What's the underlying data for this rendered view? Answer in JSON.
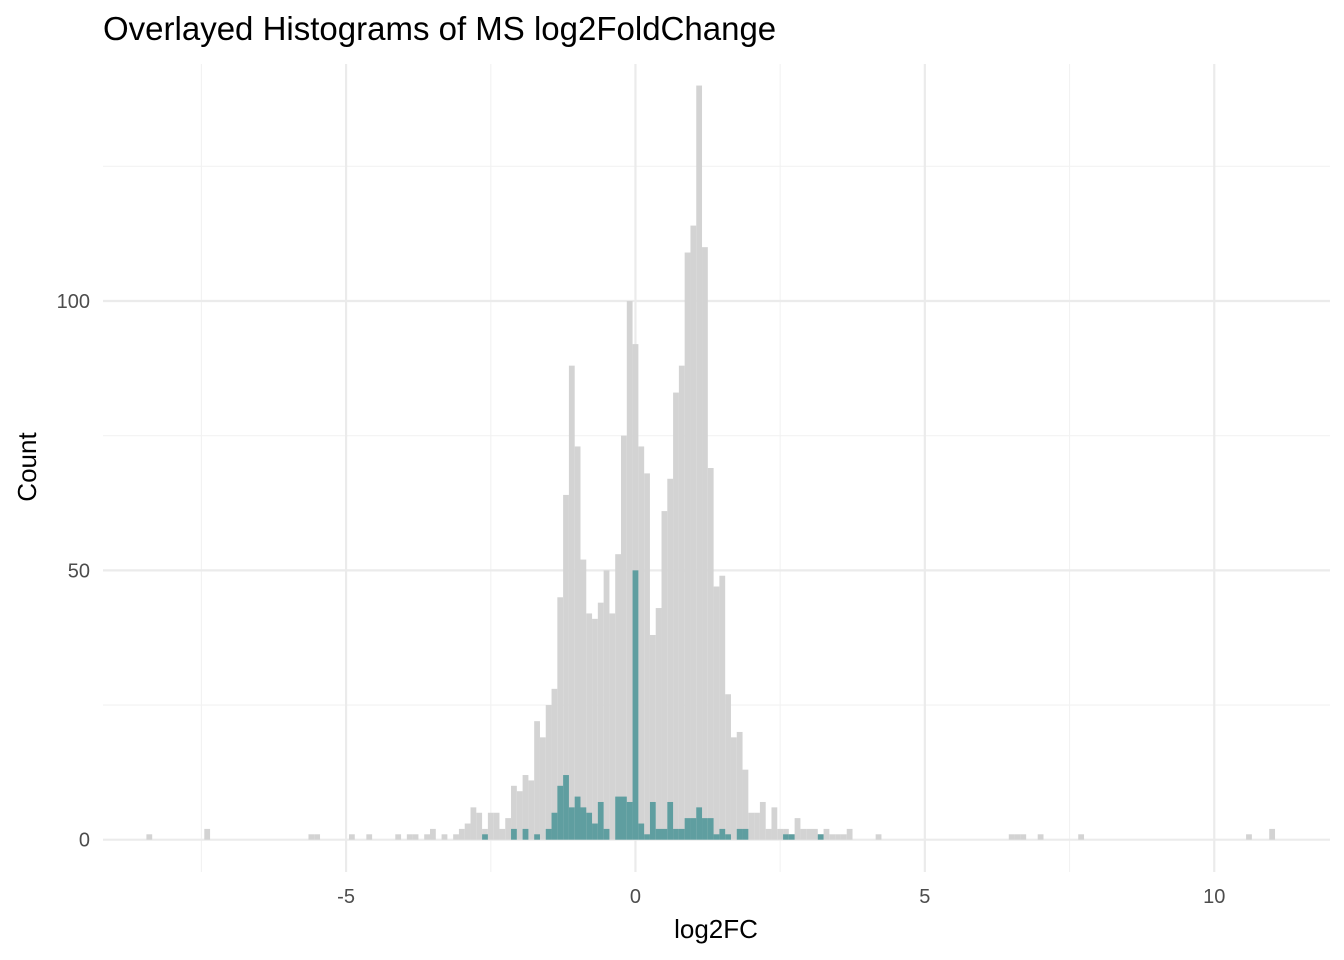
{
  "chart_data": {
    "type": "histogram",
    "title": "Overlayed Histograms of MS log2FoldChange",
    "xlabel": "log2FC",
    "ylabel": "Count",
    "xlim": [
      -9.2,
      12.0
    ],
    "ylim": [
      -6,
      144
    ],
    "x_ticks": [
      -5,
      0,
      5,
      10
    ],
    "y_ticks": [
      0,
      50,
      100
    ],
    "x_minor": [
      -7.5,
      -2.5,
      2.5,
      7.5
    ],
    "y_minor": [
      25,
      75,
      125
    ],
    "grid": true,
    "bin_width": 0.1,
    "series": [
      {
        "fill": "#d3d3d3",
        "bins": [
          [
            -8.4,
            1
          ],
          [
            -7.4,
            2
          ],
          [
            -5.6,
            1
          ],
          [
            -5.5,
            1
          ],
          [
            -4.9,
            1
          ],
          [
            -4.6,
            1
          ],
          [
            -4.1,
            1
          ],
          [
            -3.9,
            1
          ],
          [
            -3.8,
            1
          ],
          [
            -3.6,
            1
          ],
          [
            -3.5,
            2
          ],
          [
            -3.3,
            1
          ],
          [
            -3.1,
            1
          ],
          [
            -3.0,
            2
          ],
          [
            -2.9,
            3
          ],
          [
            -2.8,
            6
          ],
          [
            -2.7,
            5
          ],
          [
            -2.6,
            2
          ],
          [
            -2.5,
            5
          ],
          [
            -2.4,
            5
          ],
          [
            -2.3,
            2
          ],
          [
            -2.2,
            4
          ],
          [
            -2.1,
            10
          ],
          [
            -2.0,
            9
          ],
          [
            -1.9,
            12
          ],
          [
            -1.8,
            11
          ],
          [
            -1.7,
            22
          ],
          [
            -1.6,
            19
          ],
          [
            -1.5,
            25
          ],
          [
            -1.4,
            28
          ],
          [
            -1.3,
            45
          ],
          [
            -1.2,
            64
          ],
          [
            -1.1,
            88
          ],
          [
            -1.0,
            73
          ],
          [
            -0.9,
            52
          ],
          [
            -0.8,
            42
          ],
          [
            -0.7,
            41
          ],
          [
            -0.6,
            44
          ],
          [
            -0.5,
            50
          ],
          [
            -0.4,
            42
          ],
          [
            -0.3,
            53
          ],
          [
            -0.2,
            75
          ],
          [
            -0.1,
            100
          ],
          [
            0.0,
            92
          ],
          [
            0.1,
            73
          ],
          [
            0.2,
            68
          ],
          [
            0.3,
            38
          ],
          [
            0.4,
            43
          ],
          [
            0.5,
            61
          ],
          [
            0.6,
            67
          ],
          [
            0.7,
            83
          ],
          [
            0.8,
            88
          ],
          [
            0.9,
            109
          ],
          [
            1.0,
            114
          ],
          [
            1.1,
            140
          ],
          [
            1.2,
            110
          ],
          [
            1.3,
            69
          ],
          [
            1.4,
            47
          ],
          [
            1.5,
            49
          ],
          [
            1.6,
            27
          ],
          [
            1.7,
            19
          ],
          [
            1.8,
            20
          ],
          [
            1.9,
            13
          ],
          [
            2.0,
            5
          ],
          [
            2.1,
            5
          ],
          [
            2.2,
            7
          ],
          [
            2.3,
            2
          ],
          [
            2.4,
            6
          ],
          [
            2.5,
            2
          ],
          [
            2.6,
            2
          ],
          [
            2.7,
            1
          ],
          [
            2.8,
            4
          ],
          [
            2.9,
            2
          ],
          [
            3.0,
            2
          ],
          [
            3.1,
            2
          ],
          [
            3.2,
            1
          ],
          [
            3.3,
            2
          ],
          [
            3.4,
            1
          ],
          [
            3.5,
            1
          ],
          [
            3.6,
            1
          ],
          [
            3.7,
            2
          ],
          [
            4.2,
            1
          ],
          [
            6.5,
            1
          ],
          [
            6.6,
            1
          ],
          [
            6.7,
            1
          ],
          [
            7.0,
            1
          ],
          [
            7.7,
            1
          ],
          [
            10.6,
            1
          ],
          [
            11.0,
            2
          ]
        ]
      },
      {
        "fill": "#5f9ea0",
        "bins": [
          [
            -2.6,
            1
          ],
          [
            -2.1,
            2
          ],
          [
            -1.9,
            2
          ],
          [
            -1.7,
            1
          ],
          [
            -1.5,
            2
          ],
          [
            -1.4,
            5
          ],
          [
            -1.3,
            10
          ],
          [
            -1.2,
            12
          ],
          [
            -1.1,
            6
          ],
          [
            -1.0,
            8
          ],
          [
            -0.9,
            6
          ],
          [
            -0.8,
            5
          ],
          [
            -0.7,
            3
          ],
          [
            -0.6,
            7
          ],
          [
            -0.5,
            2
          ],
          [
            -0.3,
            8
          ],
          [
            -0.2,
            8
          ],
          [
            -0.1,
            7
          ],
          [
            0.0,
            50
          ],
          [
            0.1,
            3
          ],
          [
            0.2,
            1
          ],
          [
            0.3,
            7
          ],
          [
            0.4,
            2
          ],
          [
            0.5,
            2
          ],
          [
            0.6,
            7
          ],
          [
            0.7,
            2
          ],
          [
            0.8,
            2
          ],
          [
            0.9,
            4
          ],
          [
            1.0,
            4
          ],
          [
            1.1,
            6
          ],
          [
            1.2,
            4
          ],
          [
            1.3,
            4
          ],
          [
            1.4,
            1
          ],
          [
            1.5,
            2
          ],
          [
            1.6,
            1
          ],
          [
            1.8,
            2
          ],
          [
            1.9,
            2
          ],
          [
            2.6,
            1
          ],
          [
            2.7,
            1
          ],
          [
            3.2,
            1
          ]
        ]
      }
    ]
  }
}
